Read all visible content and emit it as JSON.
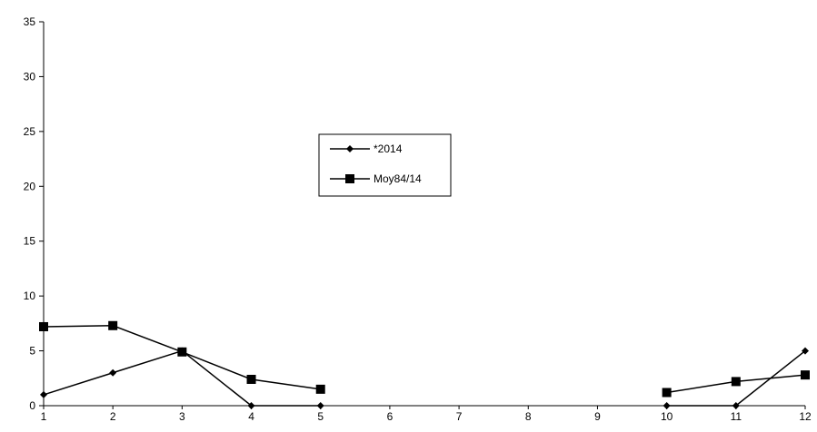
{
  "chart_data": {
    "type": "line",
    "title": "",
    "xlabel": "",
    "ylabel": "",
    "x": [
      1,
      2,
      3,
      4,
      5,
      6,
      7,
      8,
      9,
      10,
      11,
      12
    ],
    "x_ticks": [
      "1",
      "2",
      "3",
      "4",
      "5",
      "6",
      "7",
      "8",
      "9",
      "10",
      "11",
      "12"
    ],
    "ylim": [
      0,
      35
    ],
    "y_ticks": [
      "0",
      "5",
      "10",
      "15",
      "20",
      "25",
      "30",
      "35"
    ],
    "grid": false,
    "legend_position": "center",
    "series": [
      {
        "name": "*2014",
        "marker": "diamond",
        "color": "#000000",
        "values": [
          1,
          3,
          5,
          0,
          0,
          null,
          null,
          null,
          null,
          0,
          0,
          5
        ]
      },
      {
        "name": "Moy84/14",
        "marker": "square",
        "color": "#000000",
        "values": [
          7.2,
          7.3,
          4.9,
          2.4,
          1.5,
          null,
          null,
          null,
          null,
          1.2,
          2.2,
          2.8
        ]
      }
    ]
  }
}
